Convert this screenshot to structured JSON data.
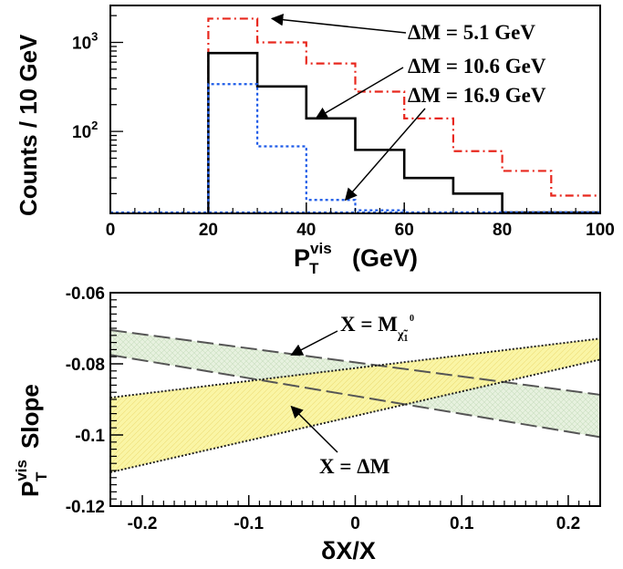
{
  "chart_data": [
    {
      "type": "step-histogram",
      "xlabel": "P",
      "xlabel_sub": "T",
      "xlabel_sup": "vis",
      "xlabel_unit": "(GeV)",
      "ylabel": "Counts / 10 GeV",
      "xlim": [
        0,
        100
      ],
      "ylim": [
        12,
        2600
      ],
      "yscale": "log",
      "xticks": [
        0,
        20,
        40,
        60,
        80,
        100
      ],
      "ytick_labels": [
        {
          "value": 1000,
          "base": "10",
          "exp": "3"
        },
        {
          "value": 100,
          "base": "10",
          "exp": "2"
        }
      ],
      "bin_edges": [
        20,
        30,
        40,
        50,
        60,
        70,
        80,
        90,
        100
      ],
      "series": [
        {
          "values": [
            1850,
            1000,
            580,
            280,
            140,
            60,
            36,
            19
          ],
          "color": "#e8281e",
          "dash": "red-dashdot"
        },
        {
          "values": [
            760,
            320,
            140,
            62,
            30,
            20,
            0,
            0
          ],
          "color": "#000000",
          "dash": "solid"
        },
        {
          "values": [
            340,
            68,
            17,
            13,
            0,
            0,
            0,
            0
          ],
          "color": "#1d5be8",
          "dash": "blue-dot"
        }
      ],
      "annotations": [
        {
          "text": "ΔM = 5.1 GeV",
          "points_to": [
            33,
            1850
          ]
        },
        {
          "text": "ΔM = 10.6 GeV",
          "points_to": [
            42,
            140
          ]
        },
        {
          "text": "ΔM = 16.9 GeV",
          "points_to": [
            48,
            17
          ]
        }
      ]
    },
    {
      "type": "band",
      "xlabel": "δX/X",
      "ylabel": "P",
      "ylabel_sub": "T",
      "ylabel_sup": "vis",
      "ylabel_word": "Slope",
      "xlim": [
        -0.23,
        0.23
      ],
      "ylim": [
        -0.12,
        -0.06
      ],
      "xticks": [
        -0.2,
        -0.1,
        0,
        0.1,
        0.2
      ],
      "xtick_labels": [
        "-0.2",
        "-0.1",
        "0",
        "0.1",
        "0.2"
      ],
      "yticks": [
        -0.06,
        -0.08,
        -0.1,
        -0.12
      ],
      "ytick_labels": [
        "-0.06",
        "-0.08",
        "-0.1",
        "-0.12"
      ],
      "bands": [
        {
          "name": "neutralino",
          "x": [
            -0.23,
            0.23
          ],
          "upper": [
            -0.0705,
            -0.0887
          ],
          "lower": [
            -0.0775,
            -0.1006
          ],
          "fill": "#e6f1df",
          "edge": "#555555",
          "edge_style": "long-dash"
        },
        {
          "name": "deltaM",
          "x": [
            -0.23,
            0.23
          ],
          "upper": [
            -0.0895,
            -0.0729
          ],
          "lower": [
            -0.1105,
            -0.0788
          ],
          "fill": "#fbf5a8",
          "edge": "#222222",
          "edge_style": "dotted"
        }
      ],
      "annotations": [
        {
          "label": "X = M",
          "sub": "χ̃",
          "sub2": "1",
          "sup": "0",
          "points_to": [
            -0.06,
            -0.0775
          ]
        },
        {
          "label": "X = ΔM",
          "points_to": [
            -0.06,
            -0.092
          ]
        }
      ]
    }
  ]
}
